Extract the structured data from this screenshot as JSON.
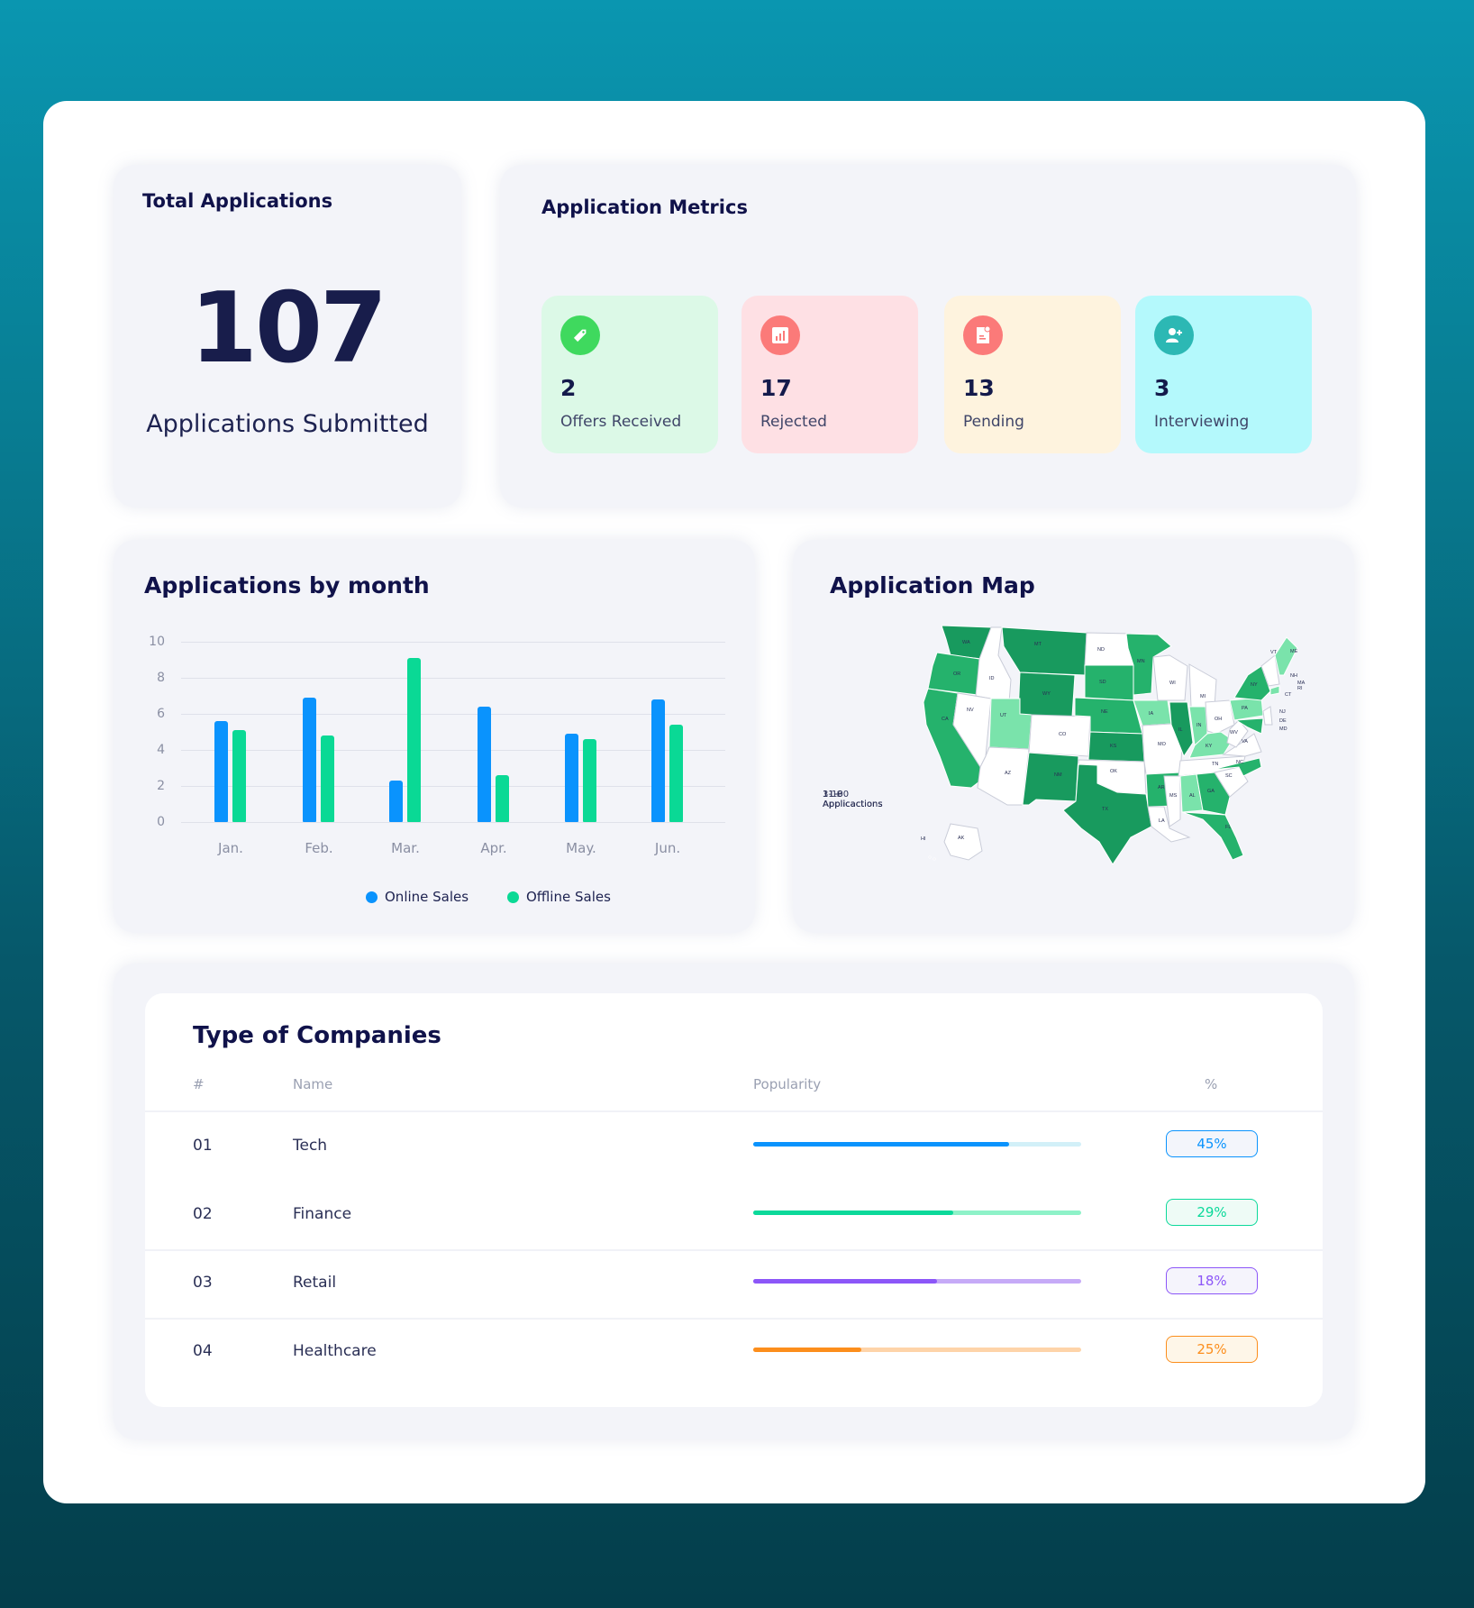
{
  "total": {
    "title": "Total Applications",
    "count": "107",
    "subtitle": "Applications Submitted"
  },
  "metrics": {
    "title": "Application Metrics",
    "items": [
      {
        "value": "2",
        "label": "Offers Received",
        "icon": "tag-icon",
        "bg": "#dcf9e7",
        "icon_bg": "#3fd95e"
      },
      {
        "value": "17",
        "label": "Rejected",
        "icon": "bar-chart-icon",
        "bg": "#fee0e4",
        "icon_bg": "#fb7a79"
      },
      {
        "value": "13",
        "label": "Pending",
        "icon": "document-icon",
        "bg": "#fef3de",
        "icon_bg": "#fb7a79"
      },
      {
        "value": "3",
        "label": "Interviewing",
        "icon": "add-user-icon",
        "bg": "#b4f9fc",
        "icon_bg": "#2cb8b4"
      }
    ]
  },
  "bar_chart": {
    "title": "Applications by month",
    "legend": [
      "Online Sales",
      "Offline Sales"
    ]
  },
  "map": {
    "title": "Application Map",
    "legend": [
      "1-10 Applicactions",
      "11-30 Applicactions",
      "31+ Applicactions"
    ],
    "legend_colors": [
      "#7ae3ab",
      "#25b26c",
      "#189a5e"
    ],
    "states": {
      "light": [
        "UT",
        "IA",
        "IN",
        "KY",
        "AL",
        "PA",
        "ME",
        "CT"
      ],
      "medium": [
        "OR",
        "CA",
        "SD",
        "NE",
        "MN",
        "AR",
        "NY",
        "NC",
        "GA",
        "FL",
        "MD"
      ],
      "dark": [
        "WA",
        "MT",
        "WY",
        "KS",
        "NM",
        "TX",
        "IL"
      ],
      "none": [
        "ID",
        "NV",
        "AZ",
        "CO",
        "ND",
        "OK",
        "MO",
        "WI",
        "MI",
        "OH",
        "WV",
        "VA",
        "TN",
        "MS",
        "LA",
        "SC",
        "VT",
        "NH",
        "MA",
        "RI",
        "NJ",
        "DE",
        "AK",
        "HI"
      ]
    }
  },
  "table": {
    "title": "Type of Companies",
    "headers": [
      "#",
      "Name",
      "Popularity",
      "%"
    ],
    "rows": [
      {
        "idx": "01",
        "name": "Tech",
        "pct": "45%",
        "fill": 0.78,
        "color": "#0a93fd",
        "track": "#d2f0f8",
        "badge_bg": "#f3f5fb"
      },
      {
        "idx": "02",
        "name": "Finance",
        "pct": "29%",
        "fill": 0.61,
        "color": "#0bd99a",
        "track": "#8ef2c8",
        "badge_bg": "#eefbf6"
      },
      {
        "idx": "03",
        "name": "Retail",
        "pct": "18%",
        "fill": 0.56,
        "color": "#8c56f8",
        "track": "#c6aaf7",
        "badge_bg": "#f5f4fc"
      },
      {
        "idx": "04",
        "name": "Healthcare",
        "pct": "25%",
        "fill": 0.33,
        "color": "#fc8e1c",
        "track": "#fed4a9",
        "badge_bg": "#fef6e8"
      }
    ]
  },
  "chart_data": {
    "type": "bar",
    "title": "Applications by month",
    "categories": [
      "Jan.",
      "Feb.",
      "Mar.",
      "Apr.",
      "May.",
      "Jun."
    ],
    "series": [
      {
        "name": "Online Sales",
        "color": "#0a93fd",
        "values": [
          5.6,
          6.9,
          2.3,
          6.4,
          4.9,
          6.8
        ]
      },
      {
        "name": "Offline Sales",
        "color": "#0ad995",
        "values": [
          5.1,
          4.8,
          9.1,
          2.6,
          4.6,
          5.4
        ]
      }
    ],
    "yticks": [
      0,
      2,
      4,
      6,
      8,
      10
    ],
    "ylim": [
      0,
      10
    ],
    "xlabel": "",
    "ylabel": "",
    "grid": true,
    "legend_position": "bottom"
  }
}
